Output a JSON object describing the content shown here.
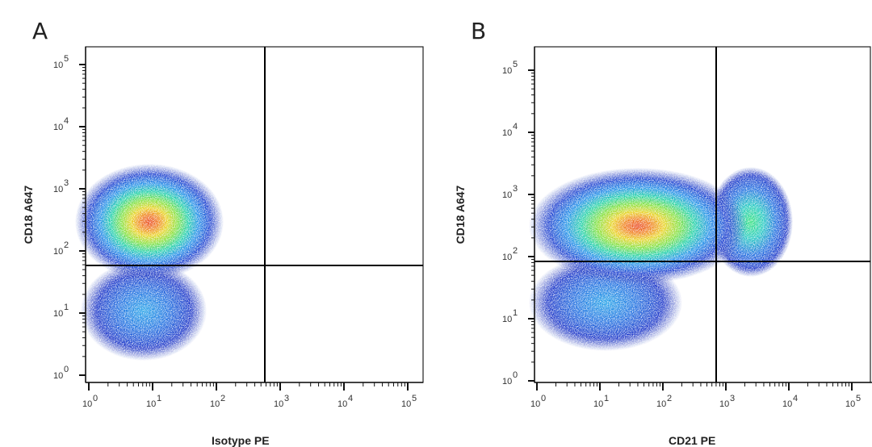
{
  "chart_data": [
    {
      "type": "scatter",
      "subtype": "flow-cytometry-density-dot-plot",
      "panel_label": "A",
      "xlabel": "Isotype PE",
      "ylabel": "CD18 A647",
      "xscale": "log",
      "yscale": "log",
      "xlim": [
        0.5,
        150000
      ],
      "ylim": [
        0.7,
        200000
      ],
      "xticks": [
        "10^0",
        "10^1",
        "10^2",
        "10^3",
        "10^4",
        "10^5"
      ],
      "yticks": [
        "10^0",
        "10^1",
        "10^2",
        "10^3",
        "10^4",
        "10^5"
      ],
      "quadrant_gate": {
        "x": 600,
        "y": 70
      },
      "populations": [
        {
          "name": "CD18 high, isotype negative",
          "center": [
            12,
            250
          ],
          "x_range": [
            0.5,
            70
          ],
          "y_range": [
            70,
            4000
          ],
          "peak_density": "high"
        },
        {
          "name": "CD18 low, isotype negative",
          "center": [
            10,
            15
          ],
          "x_range": [
            0.5,
            60
          ],
          "y_range": [
            2,
            70
          ],
          "peak_density": "medium"
        }
      ],
      "grid": false,
      "legend": null
    },
    {
      "type": "scatter",
      "subtype": "flow-cytometry-density-dot-plot",
      "panel_label": "B",
      "xlabel": "CD21 PE",
      "ylabel": "CD18 A647",
      "xscale": "log",
      "yscale": "log",
      "xlim": [
        0.5,
        150000
      ],
      "ylim": [
        0.7,
        200000
      ],
      "xticks": [
        "10^0",
        "10^1",
        "10^2",
        "10^3",
        "10^4",
        "10^5"
      ],
      "yticks": [
        "10^0",
        "10^1",
        "10^2",
        "10^3",
        "10^4",
        "10^5"
      ],
      "quadrant_gate": {
        "x": 700,
        "y": 80
      },
      "populations": [
        {
          "name": "CD18+ CD21-",
          "center": [
            80,
            270
          ],
          "x_range": [
            0.5,
            700
          ],
          "y_range": [
            80,
            6000
          ],
          "peak_density": "high"
        },
        {
          "name": "CD18+ CD21+",
          "center": [
            3500,
            180
          ],
          "x_range": [
            700,
            8000
          ],
          "y_range": [
            60,
            3000
          ],
          "peak_density": "medium"
        },
        {
          "name": "CD18 low CD21-",
          "center": [
            12,
            20
          ],
          "x_range": [
            1,
            200
          ],
          "y_range": [
            3,
            80
          ],
          "peak_density": "medium"
        }
      ],
      "grid": false,
      "legend": null
    }
  ],
  "panels": [
    {
      "letter": "A",
      "xlabel": "Isotype PE",
      "ylabel": "CD18 A647"
    },
    {
      "letter": "B",
      "xlabel": "CD21 PE",
      "ylabel": "CD18 A647"
    }
  ],
  "ticks": {
    "x": [
      {
        "b": "10",
        "e": "0"
      },
      {
        "b": "10",
        "e": "1"
      },
      {
        "b": "10",
        "e": "2"
      },
      {
        "b": "10",
        "e": "3"
      },
      {
        "b": "10",
        "e": "4"
      },
      {
        "b": "10",
        "e": "5"
      }
    ],
    "y": [
      {
        "b": "10",
        "e": "0"
      },
      {
        "b": "10",
        "e": "1"
      },
      {
        "b": "10",
        "e": "2"
      },
      {
        "b": "10",
        "e": "3"
      },
      {
        "b": "10",
        "e": "4"
      },
      {
        "b": "10",
        "e": "5"
      }
    ]
  }
}
